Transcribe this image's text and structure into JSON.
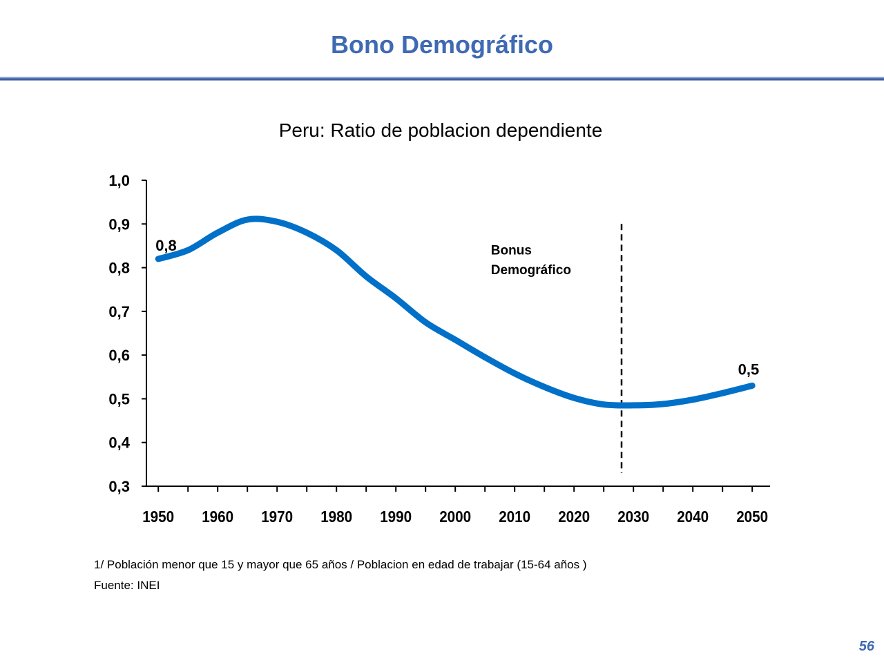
{
  "slide": {
    "title": "Bono Demográfico",
    "page_number": "56"
  },
  "colors": {
    "title": "#3f6ab3",
    "line": "#0070c8",
    "axis": "#000000"
  },
  "chart_data": {
    "type": "line",
    "title": "Peru: Ratio de poblacion dependiente",
    "xlabel": "",
    "ylabel": "",
    "xlim": [
      1948,
      2053
    ],
    "ylim": [
      0.3,
      1.0
    ],
    "x_ticks": [
      "1950",
      "1960",
      "1970",
      "1980",
      "1990",
      "2000",
      "2010",
      "2020",
      "2030",
      "2040",
      "2050"
    ],
    "x_tick_values": [
      1950,
      1960,
      1970,
      1980,
      1990,
      2000,
      2010,
      2020,
      2030,
      2040,
      2050
    ],
    "y_ticks": [
      "1,0",
      "0,9",
      "0,8",
      "0,7",
      "0,6",
      "0,5",
      "0,4",
      "0,3"
    ],
    "y_tick_values": [
      1.0,
      0.9,
      0.8,
      0.7,
      0.6,
      0.5,
      0.4,
      0.3
    ],
    "grid": false,
    "series": [
      {
        "x": [
          1950,
          1955,
          1960,
          1965,
          1970,
          1975,
          1980,
          1985,
          1990,
          1995,
          2000,
          2005,
          2010,
          2015,
          2020,
          2025,
          2030,
          2035,
          2040,
          2045,
          2050
        ],
        "y": [
          0.82,
          0.84,
          0.88,
          0.91,
          0.905,
          0.88,
          0.84,
          0.78,
          0.73,
          0.675,
          0.635,
          0.595,
          0.558,
          0.527,
          0.502,
          0.487,
          0.485,
          0.488,
          0.498,
          0.513,
          0.53
        ]
      }
    ],
    "annotations": [
      {
        "text": "0,8",
        "x": 1950,
        "y": 0.82
      },
      {
        "text": "0,5",
        "x": 2050,
        "y": 0.53
      },
      {
        "text": "Bonus",
        "x": 2006,
        "y": 0.83
      },
      {
        "text": "Demográfico",
        "x": 2006,
        "y": 0.785
      }
    ],
    "reference_line": {
      "x": 2028,
      "y_range": [
        0.33,
        0.9
      ],
      "style": "dashed"
    }
  },
  "footnotes": {
    "note": "1/ Población menor que 15 y mayor que 65 años  / Poblacion en edad de trabajar (15-64 años )",
    "source": "Fuente: INEI"
  }
}
